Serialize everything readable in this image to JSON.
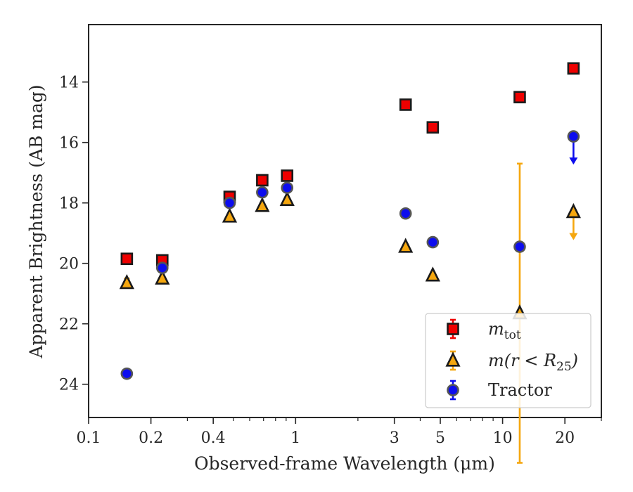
{
  "chart_data": {
    "type": "scatter",
    "xlabel": "Observed-frame Wavelength (μm)",
    "ylabel": "Apparent Brightness (AB mag)",
    "xscale": "log",
    "yaxis_inverted": true,
    "xlim": [
      0.1,
      30
    ],
    "ylim": [
      25.1,
      12.1
    ],
    "x_ticks": [
      {
        "value": 0.1,
        "label": "0.1"
      },
      {
        "value": 0.2,
        "label": "0.2"
      },
      {
        "value": 0.4,
        "label": "0.4"
      },
      {
        "value": 1,
        "label": "1"
      },
      {
        "value": 3,
        "label": "3"
      },
      {
        "value": 5,
        "label": "5"
      },
      {
        "value": 10,
        "label": "10"
      },
      {
        "value": 20,
        "label": "20"
      }
    ],
    "y_ticks": [
      {
        "value": 14,
        "label": "14"
      },
      {
        "value": 16,
        "label": "16"
      },
      {
        "value": 18,
        "label": "18"
      },
      {
        "value": 20,
        "label": "20"
      },
      {
        "value": 22,
        "label": "22"
      },
      {
        "value": 24,
        "label": "24"
      }
    ],
    "grid": false,
    "legend_position": "lower-right",
    "series": [
      {
        "name": "m_tot",
        "legend_main": "m",
        "legend_sub": "tot",
        "marker": "square",
        "color": "#ee0000",
        "x": [
          0.153,
          0.227,
          0.48,
          0.69,
          0.91,
          3.4,
          4.6,
          12.1,
          22.0
        ],
        "y": [
          19.85,
          19.9,
          17.8,
          17.25,
          17.1,
          14.75,
          15.5,
          14.5,
          13.55
        ],
        "err": [
          0.05,
          0.05,
          0.03,
          0.03,
          0.03,
          0.05,
          0.05,
          0.1,
          0.1
        ],
        "upper_limit": [
          false,
          false,
          false,
          false,
          false,
          false,
          false,
          false,
          false
        ]
      },
      {
        "name": "m(r < R25)",
        "legend_main": "m(r < R",
        "legend_sub": "25",
        "legend_tail": ")",
        "marker": "triangle",
        "color": "#f5a70f",
        "x": [
          0.153,
          0.227,
          0.48,
          0.69,
          0.91,
          3.4,
          4.6,
          12.1,
          22.0
        ],
        "y": [
          20.65,
          20.5,
          18.45,
          18.1,
          17.9,
          19.45,
          20.4,
          21.65,
          18.3
        ],
        "err": [
          0.15,
          0.05,
          0.05,
          0.05,
          0.05,
          0.05,
          0.1,
          4.95,
          0.0
        ],
        "upper_limit": [
          false,
          false,
          false,
          false,
          false,
          false,
          false,
          false,
          true
        ]
      },
      {
        "name": "Tractor",
        "marker": "circle",
        "color": "#0d0dee",
        "x": [
          0.153,
          0.227,
          0.48,
          0.69,
          0.91,
          3.4,
          4.6,
          12.1,
          22.0
        ],
        "y": [
          23.65,
          20.15,
          18.0,
          17.65,
          17.5,
          18.35,
          19.3,
          19.45,
          15.8
        ],
        "err": [
          0.1,
          0.1,
          0.03,
          0.03,
          0.03,
          0.05,
          0.05,
          0.05,
          0.0
        ],
        "upper_limit": [
          false,
          false,
          false,
          false,
          false,
          false,
          false,
          false,
          true
        ]
      }
    ]
  }
}
